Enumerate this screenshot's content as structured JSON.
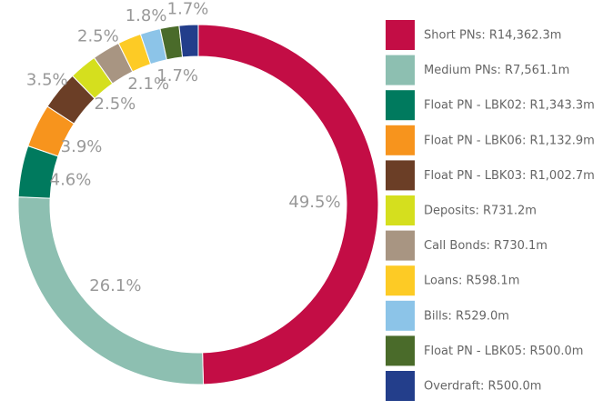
{
  "chart_data": {
    "type": "donut",
    "categories": [
      "Short PNs: R14,362.3m",
      "Medium PNs: R7,561.1m",
      "Float PN - LBK02: R1,343.3m",
      "Float PN - LBK06: R1,132.9m",
      "Float PN - LBK03: R1,002.7m",
      "Deposits: R731.2m",
      "Call Bonds: R730.1m",
      "Loans: R598.1m",
      "Bills: R529.0m",
      "Float PN - LBK05: R500.0m",
      "Overdraft: R500.0m"
    ],
    "values": [
      49.5,
      26.1,
      4.6,
      3.9,
      3.5,
      2.5,
      2.5,
      2.1,
      1.8,
      1.7,
      1.7
    ],
    "value_labels": [
      "49.5%",
      "26.1%",
      "4.6%",
      "3.9%",
      "3.5%",
      "2.5%",
      "2.5%",
      "2.1%",
      "1.8%",
      "1.7%",
      "1.7%"
    ],
    "colors": [
      "#c30d45",
      "#8dbfb1",
      "#007a5e",
      "#f7941d",
      "#6b3e26",
      "#d5df1e",
      "#a89582",
      "#fdcb25",
      "#8cc4e8",
      "#4a6b2a",
      "#233e8b"
    ],
    "legend": "right"
  }
}
